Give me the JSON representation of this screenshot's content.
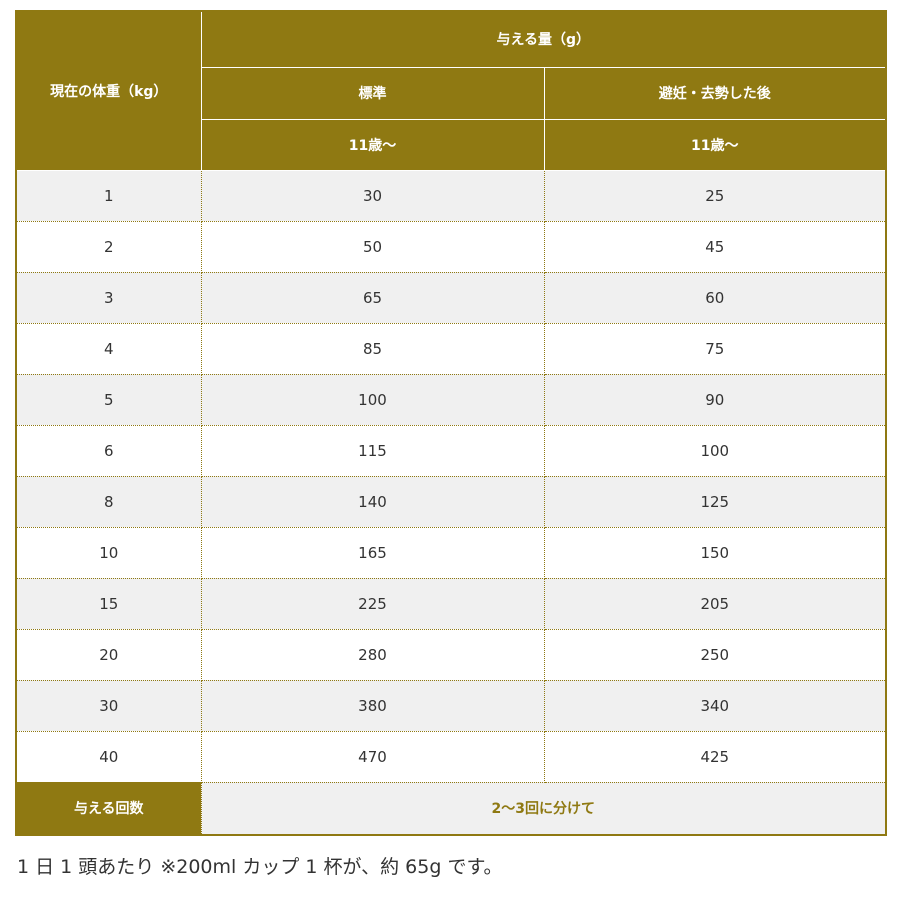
{
  "header": {
    "weight_label": "現在の体重（kg）",
    "amount_label": "与える量（g）",
    "columns": [
      "標準",
      "避妊・去勢した後"
    ],
    "age": [
      "11歳〜",
      "11歳〜"
    ]
  },
  "rows": [
    {
      "weight": "1",
      "standard": "30",
      "neutered": "25"
    },
    {
      "weight": "2",
      "standard": "50",
      "neutered": "45"
    },
    {
      "weight": "3",
      "standard": "65",
      "neutered": "60"
    },
    {
      "weight": "4",
      "standard": "85",
      "neutered": "75"
    },
    {
      "weight": "5",
      "standard": "100",
      "neutered": "90"
    },
    {
      "weight": "6",
      "standard": "115",
      "neutered": "100"
    },
    {
      "weight": "8",
      "standard": "140",
      "neutered": "125"
    },
    {
      "weight": "10",
      "standard": "165",
      "neutered": "150"
    },
    {
      "weight": "15",
      "standard": "225",
      "neutered": "205"
    },
    {
      "weight": "20",
      "standard": "280",
      "neutered": "250"
    },
    {
      "weight": "30",
      "standard": "380",
      "neutered": "340"
    },
    {
      "weight": "40",
      "standard": "470",
      "neutered": "425"
    }
  ],
  "footer": {
    "label": "与える回数",
    "value": "2〜3回に分けて"
  },
  "note": "1 日 1 頭あたり ※200ml カップ 1 杯が、約 65g です。",
  "colors": {
    "accent": "#8f7912",
    "stripe": "#f0f0f0"
  }
}
